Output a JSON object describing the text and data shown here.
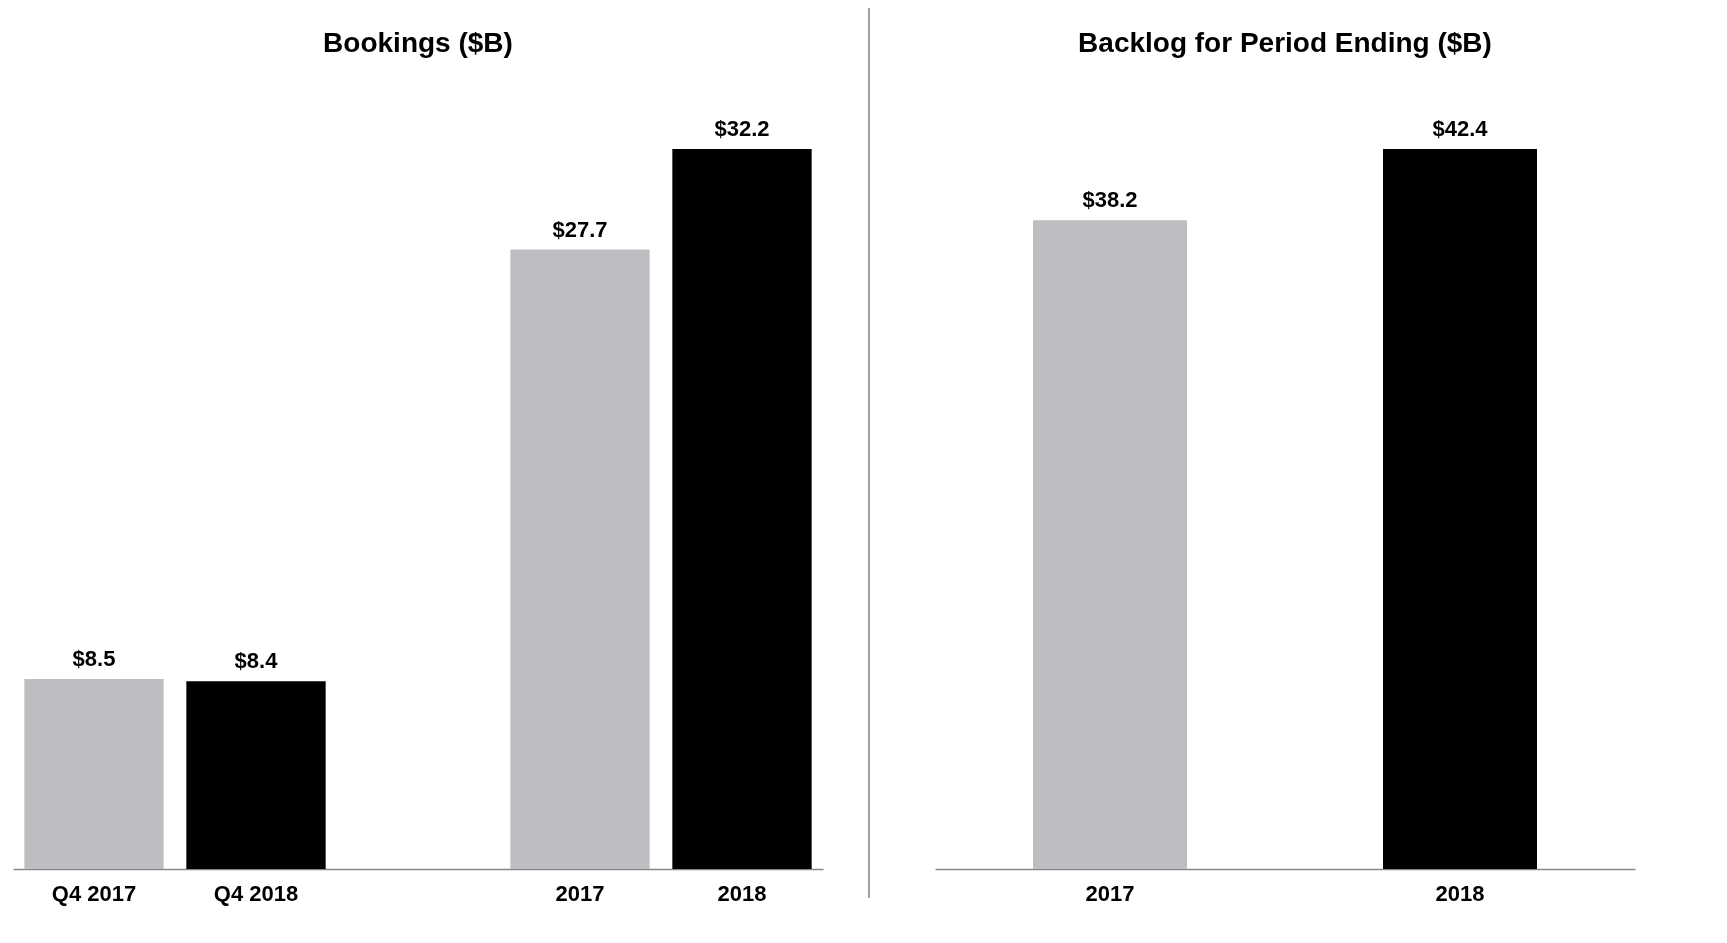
{
  "chart_data": [
    {
      "type": "bar",
      "title": "Bookings ($B)",
      "categories": [
        "Q4 2017",
        "Q4 2018",
        null,
        "2017",
        "2018"
      ],
      "values": [
        8.5,
        8.4,
        null,
        27.7,
        32.2
      ],
      "colors": [
        "#bebdc1",
        "#000000",
        "#ffffff",
        "#bebdc1",
        "#000000"
      ],
      "value_labels": [
        "$8.5",
        "$8.4",
        null,
        "$27.7",
        "$32.2"
      ]
    },
    {
      "type": "bar",
      "title": "Backlog for Period Ending ($B)",
      "categories": [
        "2017",
        "2018"
      ],
      "values": [
        38.2,
        42.4
      ],
      "colors": [
        "#bebdc1",
        "#000000"
      ],
      "value_labels": [
        "$38.2",
        "$42.4"
      ]
    }
  ]
}
